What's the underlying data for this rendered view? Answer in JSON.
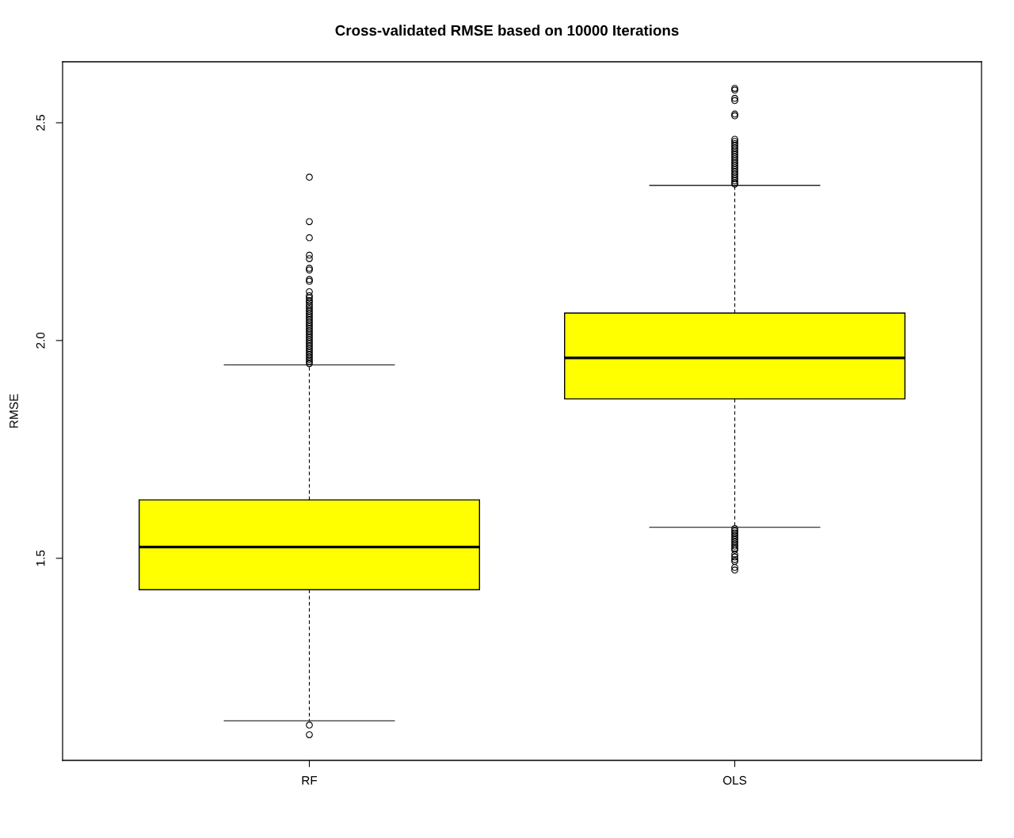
{
  "chart_data": {
    "type": "box",
    "title": "Cross-validated RMSE based on 10000 Iterations",
    "ylabel": "RMSE",
    "categories": [
      "RF",
      "OLS"
    ],
    "series": [
      {
        "color": "#ffff00",
        "boxes": [
          {
            "low": 1.127,
            "q1": 1.428,
            "median": 1.526,
            "q3": 1.634,
            "high": 1.944,
            "outliers": [
              2.375,
              2.273,
              2.236,
              2.196,
              2.188,
              2.166,
              2.162,
              2.14,
              2.136,
              2.112,
              2.103,
              2.098,
              2.092,
              2.088,
              2.082,
              2.077,
              2.072,
              2.067,
              2.062,
              2.057,
              2.052,
              2.047,
              2.042,
              2.037,
              2.032,
              2.027,
              2.022,
              2.017,
              2.012,
              2.007,
              2.002,
              1.997,
              1.992,
              1.987,
              1.982,
              1.977,
              1.972,
              1.967,
              1.962,
              1.957,
              1.952,
              1.947,
              1.117,
              1.095
            ]
          },
          {
            "low": 1.571,
            "q1": 1.866,
            "median": 1.96,
            "q3": 2.063,
            "high": 2.356,
            "outliers": [
              2.579,
              2.575,
              2.556,
              2.551,
              2.52,
              2.516,
              2.462,
              2.457,
              2.452,
              2.447,
              2.442,
              2.437,
              2.432,
              2.427,
              2.422,
              2.417,
              2.412,
              2.407,
              2.402,
              2.397,
              2.392,
              2.387,
              2.382,
              2.377,
              2.372,
              2.367,
              2.362,
              2.359,
              1.568,
              1.563,
              1.558,
              1.553,
              1.548,
              1.543,
              1.538,
              1.533,
              1.528,
              1.523,
              1.519,
              1.509,
              1.503,
              1.497,
              1.493,
              1.479,
              1.473
            ]
          }
        ]
      }
    ],
    "ylim": [
      1.036,
      2.64
    ],
    "yticks": [
      {
        "value": 1.5,
        "label": "1.5"
      },
      {
        "value": 2.0,
        "label": "2.0"
      },
      {
        "value": 2.5,
        "label": "2.5"
      }
    ],
    "marker": "circle"
  }
}
